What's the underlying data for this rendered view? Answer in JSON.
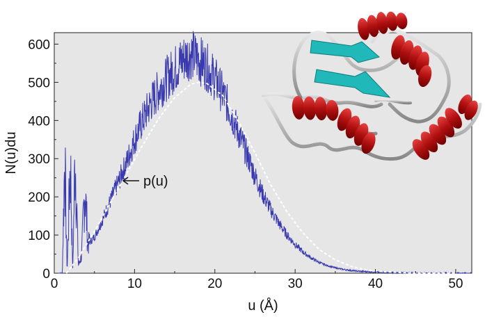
{
  "chart_data": {
    "type": "line",
    "xlabel": "u (Å)",
    "ylabel": "N(u)du",
    "xlim": [
      0,
      52
    ],
    "ylim": [
      0,
      630
    ],
    "xticks": [
      "0",
      "10",
      "20",
      "30",
      "40",
      "50"
    ],
    "yticks": [
      "0",
      "100",
      "200",
      "300",
      "400",
      "500",
      "600"
    ],
    "background": "#e6e6e6",
    "grid": false,
    "series": [
      {
        "style": "noisy histogram line",
        "color": "#3a3ab0",
        "x": [
          0.5,
          1.0,
          1.3,
          1.6,
          2.0,
          2.3,
          2.6,
          3.0,
          3.4,
          3.8,
          4.2,
          5,
          6,
          7,
          8,
          9,
          10,
          11,
          12,
          13,
          14,
          15,
          16,
          17,
          18,
          19,
          20,
          21,
          22,
          23,
          24,
          25,
          26,
          27,
          28,
          29,
          30,
          31,
          32,
          33,
          34,
          35,
          36,
          37,
          38,
          39,
          40,
          41,
          42,
          43,
          44,
          45,
          46,
          47,
          48,
          49,
          50,
          51,
          52
        ],
        "y": [
          0,
          0,
          310,
          5,
          300,
          10,
          320,
          20,
          45,
          230,
          75,
          95,
          140,
          190,
          240,
          290,
          350,
          400,
          445,
          480,
          510,
          535,
          560,
          575,
          560,
          540,
          510,
          470,
          420,
          365,
          310,
          255,
          205,
          165,
          130,
          100,
          75,
          55,
          40,
          28,
          20,
          14,
          10,
          7,
          5,
          4,
          3,
          2,
          2,
          1,
          1,
          1,
          0,
          0,
          0,
          0,
          0,
          0,
          0
        ]
      },
      {
        "name": "p(u)",
        "style": "dashed smooth curve",
        "color": "#ffffff",
        "x": [
          1.5,
          3,
          5,
          7,
          9,
          11,
          13,
          15,
          17,
          18,
          19,
          21,
          23,
          25,
          27,
          29,
          31,
          33,
          35,
          37,
          39,
          41,
          44,
          47,
          50
        ],
        "y": [
          0,
          40,
          110,
          185,
          260,
          335,
          405,
          460,
          495,
          500,
          497,
          465,
          395,
          315,
          230,
          160,
          105,
          62,
          35,
          18,
          8,
          4,
          1,
          0,
          0
        ]
      }
    ],
    "annotations": [
      {
        "text": "p(u)",
        "x": 8.2,
        "y": 240,
        "arrow": "left"
      }
    ]
  },
  "inset": {
    "description_icon": "protein-ribbon-structure",
    "helix_color": "#cc1a1a",
    "strand_color": "#20b8b8",
    "loop_color": "#b8b8b8"
  }
}
